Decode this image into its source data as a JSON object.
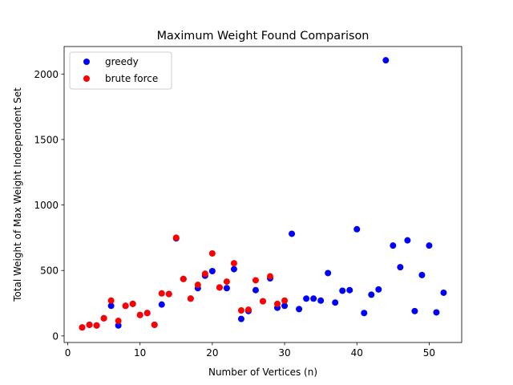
{
  "chart_data": {
    "type": "scatter",
    "title": "Maximum Weight Found Comparison",
    "xlabel": "Number of Vertices (n)",
    "ylabel": "Total Weight of Max Weight Independent Set",
    "xlim": [
      -0.5,
      54.5
    ],
    "ylim": [
      -50,
      2210
    ],
    "xticks": [
      0,
      10,
      20,
      30,
      40,
      50
    ],
    "yticks": [
      0,
      500,
      1000,
      1500,
      2000
    ],
    "grid": false,
    "legend_position": "top-left",
    "series": [
      {
        "name": "greedy",
        "color": "#0000ff",
        "points": [
          [
            2,
            65
          ],
          [
            3,
            85
          ],
          [
            4,
            80
          ],
          [
            5,
            135
          ],
          [
            6,
            230
          ],
          [
            7,
            80
          ],
          [
            8,
            230
          ],
          [
            9,
            245
          ],
          [
            10,
            160
          ],
          [
            11,
            175
          ],
          [
            12,
            85
          ],
          [
            13,
            240
          ],
          [
            14,
            320
          ],
          [
            15,
            745
          ],
          [
            16,
            435
          ],
          [
            17,
            285
          ],
          [
            18,
            365
          ],
          [
            19,
            460
          ],
          [
            20,
            495
          ],
          [
            21,
            370
          ],
          [
            22,
            365
          ],
          [
            23,
            510
          ],
          [
            24,
            130
          ],
          [
            25,
            190
          ],
          [
            26,
            350
          ],
          [
            27,
            265
          ],
          [
            28,
            440
          ],
          [
            29,
            215
          ],
          [
            30,
            230
          ],
          [
            31,
            780
          ],
          [
            32,
            205
          ],
          [
            33,
            285
          ],
          [
            34,
            285
          ],
          [
            35,
            270
          ],
          [
            36,
            480
          ],
          [
            37,
            255
          ],
          [
            38,
            345
          ],
          [
            39,
            350
          ],
          [
            40,
            815
          ],
          [
            41,
            175
          ],
          [
            42,
            315
          ],
          [
            43,
            355
          ],
          [
            44,
            2105
          ],
          [
            45,
            690
          ],
          [
            46,
            525
          ],
          [
            47,
            730
          ],
          [
            48,
            190
          ],
          [
            49,
            465
          ],
          [
            50,
            690
          ],
          [
            51,
            180
          ],
          [
            52,
            330
          ]
        ]
      },
      {
        "name": "brute force",
        "color": "#ff0000",
        "points": [
          [
            2,
            65
          ],
          [
            3,
            85
          ],
          [
            4,
            80
          ],
          [
            5,
            135
          ],
          [
            6,
            270
          ],
          [
            7,
            115
          ],
          [
            8,
            230
          ],
          [
            9,
            245
          ],
          [
            10,
            160
          ],
          [
            11,
            175
          ],
          [
            12,
            85
          ],
          [
            13,
            325
          ],
          [
            14,
            320
          ],
          [
            15,
            750
          ],
          [
            16,
            435
          ],
          [
            17,
            285
          ],
          [
            18,
            390
          ],
          [
            19,
            475
          ],
          [
            20,
            630
          ],
          [
            21,
            370
          ],
          [
            22,
            415
          ],
          [
            23,
            555
          ],
          [
            24,
            195
          ],
          [
            25,
            200
          ],
          [
            26,
            425
          ],
          [
            27,
            265
          ],
          [
            28,
            455
          ],
          [
            29,
            245
          ],
          [
            30,
            270
          ]
        ]
      }
    ]
  }
}
